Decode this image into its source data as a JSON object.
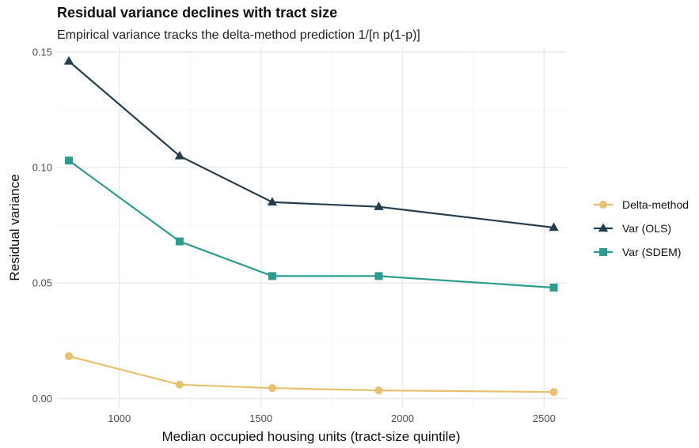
{
  "chart_data": {
    "type": "line",
    "title": "Residual variance declines with tract size",
    "subtitle": "Empirical variance tracks the delta-method prediction 1/[n p(1-p)]",
    "xlabel": "Median occupied housing units (tract-size quintile)",
    "ylabel": "Residual variance",
    "xlim": [
      780,
      2580
    ],
    "ylim": [
      -0.004,
      0.152
    ],
    "xticks": [
      1000,
      1500,
      2000,
      2500
    ],
    "xtick_labels": [
      "1000",
      "1500",
      "2000",
      "2500"
    ],
    "yticks": [
      0,
      0.05,
      0.1,
      0.15
    ],
    "ytick_labels": [
      "0.00",
      "0.05",
      "0.10",
      "0.15"
    ],
    "x": [
      822,
      1213,
      1540,
      1916,
      2534
    ],
    "grid": true,
    "legend_position": "right",
    "series": [
      {
        "name": "Delta-method",
        "color": "#e8c170",
        "marker": "circle",
        "values": [
          0.0183,
          0.006,
          0.0045,
          0.0035,
          0.0028
        ]
      },
      {
        "name": "Var (OLS)",
        "color": "#233d4d",
        "marker": "triangle",
        "values": [
          0.146,
          0.105,
          0.085,
          0.083,
          0.074
        ]
      },
      {
        "name": "Var (SDEM)",
        "color": "#2a9d8f",
        "marker": "square",
        "values": [
          0.103,
          0.068,
          0.053,
          0.053,
          0.048
        ]
      }
    ]
  }
}
